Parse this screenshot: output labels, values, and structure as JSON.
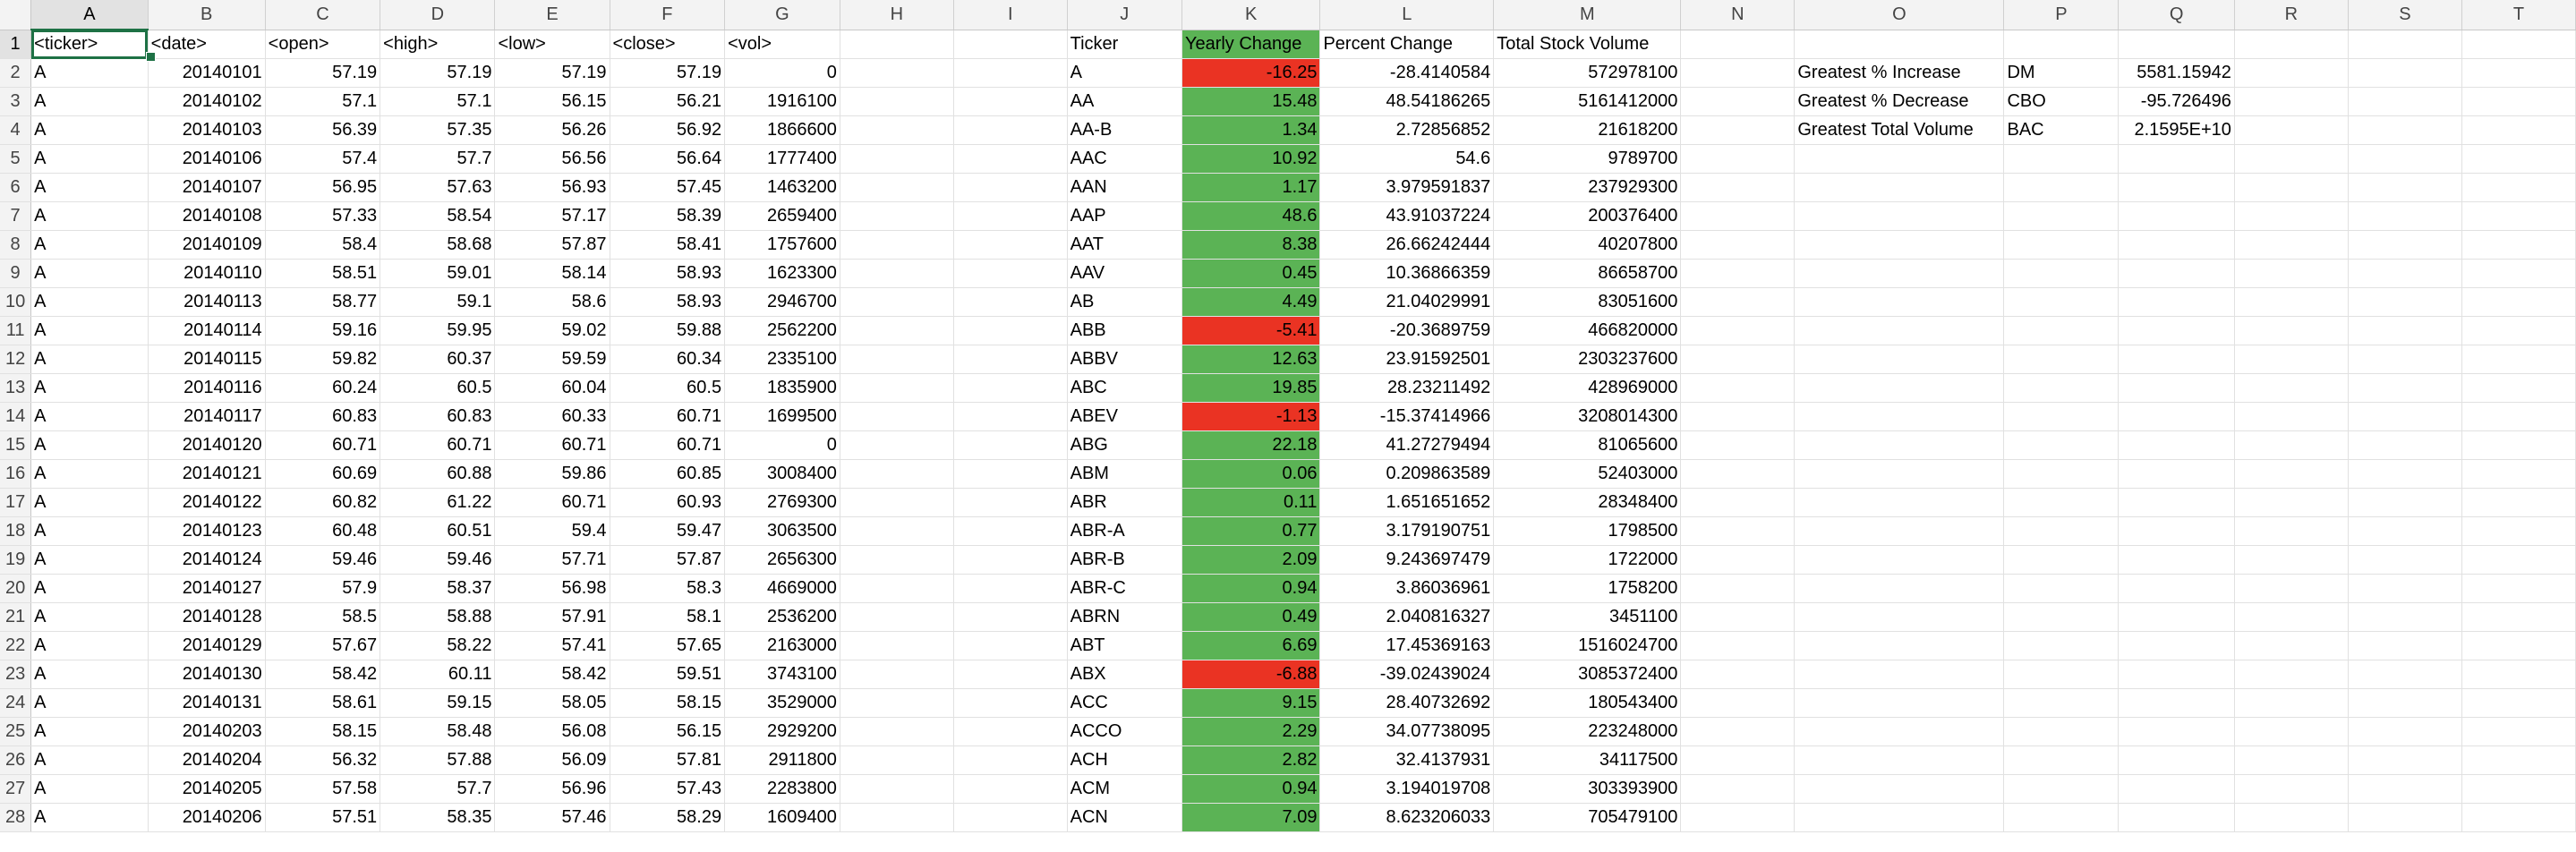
{
  "columns": [
    "A",
    "B",
    "C",
    "D",
    "E",
    "F",
    "G",
    "H",
    "I",
    "J",
    "K",
    "L",
    "M",
    "N",
    "O",
    "P",
    "Q",
    "R",
    "S",
    "T"
  ],
  "rows": [
    {
      "num": "1",
      "raw": [
        "<ticker>",
        "<date>",
        "<open>",
        "<high>",
        "<low>",
        "<close>",
        "<vol>"
      ],
      "sum": {
        "ticker": "Ticker",
        "change": "Yearly Change",
        "pct": "Percent Change",
        "vol": "Total Stock Volume"
      },
      "stat": {
        "label": "",
        "ticker": "",
        "value": ""
      }
    },
    {
      "num": "2",
      "raw": [
        "A",
        "20140101",
        "57.19",
        "57.19",
        "57.19",
        "57.19",
        "0"
      ],
      "sum": {
        "ticker": "A",
        "change": "-16.25",
        "pct": "-28.4140584",
        "vol": "572978100"
      },
      "stat": {
        "label": "Greatest % Increase",
        "ticker": "DM",
        "value": "5581.15942"
      }
    },
    {
      "num": "3",
      "raw": [
        "A",
        "20140102",
        "57.1",
        "57.1",
        "56.15",
        "56.21",
        "1916100"
      ],
      "sum": {
        "ticker": "AA",
        "change": "15.48",
        "pct": "48.54186265",
        "vol": "5161412000"
      },
      "stat": {
        "label": "Greatest % Decrease",
        "ticker": "CBO",
        "value": "-95.726496"
      }
    },
    {
      "num": "4",
      "raw": [
        "A",
        "20140103",
        "56.39",
        "57.35",
        "56.26",
        "56.92",
        "1866600"
      ],
      "sum": {
        "ticker": "AA-B",
        "change": "1.34",
        "pct": "2.72856852",
        "vol": "21618200"
      },
      "stat": {
        "label": "Greatest Total Volume",
        "ticker": "BAC",
        "value": "2.1595E+10"
      }
    },
    {
      "num": "5",
      "raw": [
        "A",
        "20140106",
        "57.4",
        "57.7",
        "56.56",
        "56.64",
        "1777400"
      ],
      "sum": {
        "ticker": "AAC",
        "change": "10.92",
        "pct": "54.6",
        "vol": "9789700"
      },
      "stat": {
        "label": "",
        "ticker": "",
        "value": ""
      }
    },
    {
      "num": "6",
      "raw": [
        "A",
        "20140107",
        "56.95",
        "57.63",
        "56.93",
        "57.45",
        "1463200"
      ],
      "sum": {
        "ticker": "AAN",
        "change": "1.17",
        "pct": "3.979591837",
        "vol": "237929300"
      },
      "stat": {
        "label": "",
        "ticker": "",
        "value": ""
      }
    },
    {
      "num": "7",
      "raw": [
        "A",
        "20140108",
        "57.33",
        "58.54",
        "57.17",
        "58.39",
        "2659400"
      ],
      "sum": {
        "ticker": "AAP",
        "change": "48.6",
        "pct": "43.91037224",
        "vol": "200376400"
      },
      "stat": {
        "label": "",
        "ticker": "",
        "value": ""
      }
    },
    {
      "num": "8",
      "raw": [
        "A",
        "20140109",
        "58.4",
        "58.68",
        "57.87",
        "58.41",
        "1757600"
      ],
      "sum": {
        "ticker": "AAT",
        "change": "8.38",
        "pct": "26.66242444",
        "vol": "40207800"
      },
      "stat": {
        "label": "",
        "ticker": "",
        "value": ""
      }
    },
    {
      "num": "9",
      "raw": [
        "A",
        "20140110",
        "58.51",
        "59.01",
        "58.14",
        "58.93",
        "1623300"
      ],
      "sum": {
        "ticker": "AAV",
        "change": "0.45",
        "pct": "10.36866359",
        "vol": "86658700"
      },
      "stat": {
        "label": "",
        "ticker": "",
        "value": ""
      }
    },
    {
      "num": "10",
      "raw": [
        "A",
        "20140113",
        "58.77",
        "59.1",
        "58.6",
        "58.93",
        "2946700"
      ],
      "sum": {
        "ticker": "AB",
        "change": "4.49",
        "pct": "21.04029991",
        "vol": "83051600"
      },
      "stat": {
        "label": "",
        "ticker": "",
        "value": ""
      }
    },
    {
      "num": "11",
      "raw": [
        "A",
        "20140114",
        "59.16",
        "59.95",
        "59.02",
        "59.88",
        "2562200"
      ],
      "sum": {
        "ticker": "ABB",
        "change": "-5.41",
        "pct": "-20.3689759",
        "vol": "466820000"
      },
      "stat": {
        "label": "",
        "ticker": "",
        "value": ""
      }
    },
    {
      "num": "12",
      "raw": [
        "A",
        "20140115",
        "59.82",
        "60.37",
        "59.59",
        "60.34",
        "2335100"
      ],
      "sum": {
        "ticker": "ABBV",
        "change": "12.63",
        "pct": "23.91592501",
        "vol": "2303237600"
      },
      "stat": {
        "label": "",
        "ticker": "",
        "value": ""
      }
    },
    {
      "num": "13",
      "raw": [
        "A",
        "20140116",
        "60.24",
        "60.5",
        "60.04",
        "60.5",
        "1835900"
      ],
      "sum": {
        "ticker": "ABC",
        "change": "19.85",
        "pct": "28.23211492",
        "vol": "428969000"
      },
      "stat": {
        "label": "",
        "ticker": "",
        "value": ""
      }
    },
    {
      "num": "14",
      "raw": [
        "A",
        "20140117",
        "60.83",
        "60.83",
        "60.33",
        "60.71",
        "1699500"
      ],
      "sum": {
        "ticker": "ABEV",
        "change": "-1.13",
        "pct": "-15.37414966",
        "vol": "3208014300"
      },
      "stat": {
        "label": "",
        "ticker": "",
        "value": ""
      }
    },
    {
      "num": "15",
      "raw": [
        "A",
        "20140120",
        "60.71",
        "60.71",
        "60.71",
        "60.71",
        "0"
      ],
      "sum": {
        "ticker": "ABG",
        "change": "22.18",
        "pct": "41.27279494",
        "vol": "81065600"
      },
      "stat": {
        "label": "",
        "ticker": "",
        "value": ""
      }
    },
    {
      "num": "16",
      "raw": [
        "A",
        "20140121",
        "60.69",
        "60.88",
        "59.86",
        "60.85",
        "3008400"
      ],
      "sum": {
        "ticker": "ABM",
        "change": "0.06",
        "pct": "0.209863589",
        "vol": "52403000"
      },
      "stat": {
        "label": "",
        "ticker": "",
        "value": ""
      }
    },
    {
      "num": "17",
      "raw": [
        "A",
        "20140122",
        "60.82",
        "61.22",
        "60.71",
        "60.93",
        "2769300"
      ],
      "sum": {
        "ticker": "ABR",
        "change": "0.11",
        "pct": "1.651651652",
        "vol": "28348400"
      },
      "stat": {
        "label": "",
        "ticker": "",
        "value": ""
      }
    },
    {
      "num": "18",
      "raw": [
        "A",
        "20140123",
        "60.48",
        "60.51",
        "59.4",
        "59.47",
        "3063500"
      ],
      "sum": {
        "ticker": "ABR-A",
        "change": "0.77",
        "pct": "3.179190751",
        "vol": "1798500"
      },
      "stat": {
        "label": "",
        "ticker": "",
        "value": ""
      }
    },
    {
      "num": "19",
      "raw": [
        "A",
        "20140124",
        "59.46",
        "59.46",
        "57.71",
        "57.87",
        "2656300"
      ],
      "sum": {
        "ticker": "ABR-B",
        "change": "2.09",
        "pct": "9.243697479",
        "vol": "1722000"
      },
      "stat": {
        "label": "",
        "ticker": "",
        "value": ""
      }
    },
    {
      "num": "20",
      "raw": [
        "A",
        "20140127",
        "57.9",
        "58.37",
        "56.98",
        "58.3",
        "4669000"
      ],
      "sum": {
        "ticker": "ABR-C",
        "change": "0.94",
        "pct": "3.86036961",
        "vol": "1758200"
      },
      "stat": {
        "label": "",
        "ticker": "",
        "value": ""
      }
    },
    {
      "num": "21",
      "raw": [
        "A",
        "20140128",
        "58.5",
        "58.88",
        "57.91",
        "58.1",
        "2536200"
      ],
      "sum": {
        "ticker": "ABRN",
        "change": "0.49",
        "pct": "2.040816327",
        "vol": "3451100"
      },
      "stat": {
        "label": "",
        "ticker": "",
        "value": ""
      }
    },
    {
      "num": "22",
      "raw": [
        "A",
        "20140129",
        "57.67",
        "58.22",
        "57.41",
        "57.65",
        "2163000"
      ],
      "sum": {
        "ticker": "ABT",
        "change": "6.69",
        "pct": "17.45369163",
        "vol": "1516024700"
      },
      "stat": {
        "label": "",
        "ticker": "",
        "value": ""
      }
    },
    {
      "num": "23",
      "raw": [
        "A",
        "20140130",
        "58.42",
        "60.11",
        "58.42",
        "59.51",
        "3743100"
      ],
      "sum": {
        "ticker": "ABX",
        "change": "-6.88",
        "pct": "-39.02439024",
        "vol": "3085372400"
      },
      "stat": {
        "label": "",
        "ticker": "",
        "value": ""
      }
    },
    {
      "num": "24",
      "raw": [
        "A",
        "20140131",
        "58.61",
        "59.15",
        "58.05",
        "58.15",
        "3529000"
      ],
      "sum": {
        "ticker": "ACC",
        "change": "9.15",
        "pct": "28.40732692",
        "vol": "180543400"
      },
      "stat": {
        "label": "",
        "ticker": "",
        "value": ""
      }
    },
    {
      "num": "25",
      "raw": [
        "A",
        "20140203",
        "58.15",
        "58.48",
        "56.08",
        "56.15",
        "2929200"
      ],
      "sum": {
        "ticker": "ACCO",
        "change": "2.29",
        "pct": "34.07738095",
        "vol": "223248000"
      },
      "stat": {
        "label": "",
        "ticker": "",
        "value": ""
      }
    },
    {
      "num": "26",
      "raw": [
        "A",
        "20140204",
        "56.32",
        "57.88",
        "56.09",
        "57.81",
        "2911800"
      ],
      "sum": {
        "ticker": "ACH",
        "change": "2.82",
        "pct": "32.4137931",
        "vol": "34117500"
      },
      "stat": {
        "label": "",
        "ticker": "",
        "value": ""
      }
    },
    {
      "num": "27",
      "raw": [
        "A",
        "20140205",
        "57.58",
        "57.7",
        "56.96",
        "57.43",
        "2283800"
      ],
      "sum": {
        "ticker": "ACM",
        "change": "0.94",
        "pct": "3.194019708",
        "vol": "303393900"
      },
      "stat": {
        "label": "",
        "ticker": "",
        "value": ""
      }
    },
    {
      "num": "28",
      "raw": [
        "A",
        "20140206",
        "57.51",
        "58.35",
        "57.46",
        "58.29",
        "1609400"
      ],
      "sum": {
        "ticker": "ACN",
        "change": "7.09",
        "pct": "8.623206033",
        "vol": "705479100"
      },
      "stat": {
        "label": "",
        "ticker": "",
        "value": ""
      }
    }
  ],
  "colors": {
    "positive": "#5bb355",
    "negative": "#ea3323",
    "selection": "#1e7145"
  }
}
